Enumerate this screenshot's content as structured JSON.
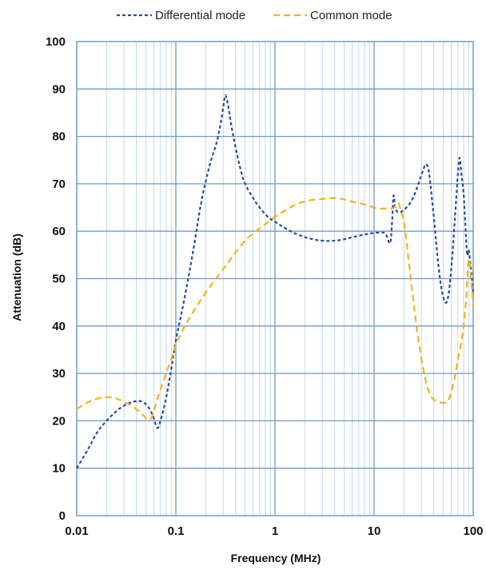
{
  "chart_data": {
    "type": "line",
    "xlabel": "Frequency (MHz)",
    "ylabel": "Attenuation (dB)",
    "x_scale": "log",
    "xlim": [
      0.01,
      100
    ],
    "ylim": [
      0,
      100
    ],
    "x_ticks": [
      "0.01",
      "0.1",
      "1",
      "10",
      "100"
    ],
    "y_ticks": [
      "0",
      "10",
      "20",
      "30",
      "40",
      "50",
      "60",
      "70",
      "80",
      "90",
      "100"
    ],
    "grid": "on",
    "legend_position": "top",
    "series": [
      {
        "name": "Differential mode",
        "color": "#2e4a9e",
        "style": "dashed",
        "points": [
          [
            0.01,
            10
          ],
          [
            0.013,
            14
          ],
          [
            0.016,
            17.5
          ],
          [
            0.02,
            20
          ],
          [
            0.025,
            22
          ],
          [
            0.03,
            23.2
          ],
          [
            0.037,
            24
          ],
          [
            0.043,
            24.2
          ],
          [
            0.05,
            23.5
          ],
          [
            0.056,
            22
          ],
          [
            0.06,
            20.5
          ],
          [
            0.065,
            18.5
          ],
          [
            0.07,
            20
          ],
          [
            0.08,
            25
          ],
          [
            0.09,
            31
          ],
          [
            0.1,
            37
          ],
          [
            0.12,
            45
          ],
          [
            0.15,
            56
          ],
          [
            0.18,
            66
          ],
          [
            0.22,
            74
          ],
          [
            0.26,
            79
          ],
          [
            0.29,
            84
          ],
          [
            0.31,
            88
          ],
          [
            0.32,
            88.5
          ],
          [
            0.34,
            86
          ],
          [
            0.38,
            80
          ],
          [
            0.45,
            73
          ],
          [
            0.5,
            70
          ],
          [
            0.6,
            67
          ],
          [
            0.7,
            65
          ],
          [
            0.85,
            63
          ],
          [
            1,
            62
          ],
          [
            1.3,
            60.5
          ],
          [
            1.7,
            59.3
          ],
          [
            2.2,
            58.5
          ],
          [
            3,
            58
          ],
          [
            4,
            58
          ],
          [
            5,
            58.3
          ],
          [
            6,
            58.7
          ],
          [
            7.5,
            59.2
          ],
          [
            9,
            59.5
          ],
          [
            11,
            59.7
          ],
          [
            13,
            59.5
          ],
          [
            14.5,
            57.5
          ],
          [
            15.2,
            62
          ],
          [
            15.7,
            67.5
          ],
          [
            16.3,
            65
          ],
          [
            17.5,
            64
          ],
          [
            20,
            64.5
          ],
          [
            24,
            66.5
          ],
          [
            28,
            70
          ],
          [
            32,
            73.5
          ],
          [
            34,
            74
          ],
          [
            36,
            72
          ],
          [
            40,
            63
          ],
          [
            45,
            52
          ],
          [
            50,
            46
          ],
          [
            55,
            45.5
          ],
          [
            60,
            52
          ],
          [
            65,
            62
          ],
          [
            70,
            72
          ],
          [
            73,
            75.5
          ],
          [
            76,
            72
          ],
          [
            80,
            68
          ],
          [
            84,
            60
          ],
          [
            87,
            55
          ],
          [
            90,
            56
          ],
          [
            95,
            52
          ],
          [
            100,
            47
          ]
        ]
      },
      {
        "name": "Common mode",
        "color": "#f2b31a",
        "style": "dashed",
        "points": [
          [
            0.01,
            22.5
          ],
          [
            0.012,
            23.5
          ],
          [
            0.015,
            24.5
          ],
          [
            0.02,
            25
          ],
          [
            0.025,
            24.7
          ],
          [
            0.03,
            24
          ],
          [
            0.037,
            23
          ],
          [
            0.045,
            21.5
          ],
          [
            0.052,
            20.3
          ],
          [
            0.056,
            20.5
          ],
          [
            0.06,
            22
          ],
          [
            0.065,
            24.5
          ],
          [
            0.075,
            28.5
          ],
          [
            0.09,
            33
          ],
          [
            0.1,
            36
          ],
          [
            0.12,
            39.5
          ],
          [
            0.15,
            43
          ],
          [
            0.2,
            47
          ],
          [
            0.3,
            52
          ],
          [
            0.4,
            55.5
          ],
          [
            0.5,
            58
          ],
          [
            0.6,
            59.5
          ],
          [
            0.8,
            61.5
          ],
          [
            1,
            63
          ],
          [
            1.3,
            64.5
          ],
          [
            1.7,
            65.8
          ],
          [
            2.2,
            66.5
          ],
          [
            3,
            66.8
          ],
          [
            4,
            67
          ],
          [
            5,
            66.7
          ],
          [
            6,
            66.2
          ],
          [
            7.5,
            65.8
          ],
          [
            9,
            65.3
          ],
          [
            11,
            64.8
          ],
          [
            13,
            64.8
          ],
          [
            15,
            64.8
          ],
          [
            16,
            65
          ],
          [
            17.5,
            66
          ],
          [
            18.5,
            64.5
          ],
          [
            20,
            62
          ],
          [
            22,
            55
          ],
          [
            25,
            45
          ],
          [
            28,
            37
          ],
          [
            32,
            30
          ],
          [
            36,
            26
          ],
          [
            40,
            24.5
          ],
          [
            45,
            24
          ],
          [
            50,
            23.8
          ],
          [
            55,
            24
          ],
          [
            60,
            26
          ],
          [
            65,
            29
          ],
          [
            70,
            33
          ],
          [
            75,
            36
          ],
          [
            80,
            40
          ],
          [
            85,
            46
          ],
          [
            90,
            54
          ],
          [
            95,
            50
          ],
          [
            100,
            44
          ]
        ]
      }
    ]
  }
}
